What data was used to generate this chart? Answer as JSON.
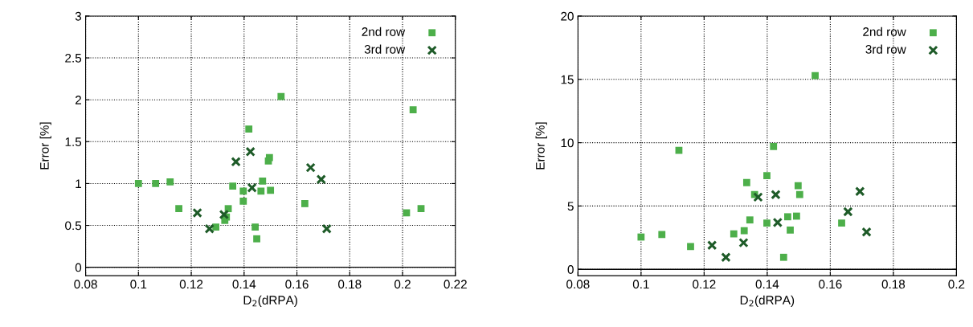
{
  "chart_data": [
    {
      "type": "scatter",
      "xlabel": "D$_{2}$(dRPA)",
      "ylabel": "Error [%]",
      "xlim": [
        0.08,
        0.22
      ],
      "xticks": [
        0.08,
        0.1,
        0.12,
        0.14,
        0.16,
        0.18,
        0.2,
        0.22
      ],
      "ylim": [
        -0.1,
        3
      ],
      "yticks": [
        0,
        0.5,
        1,
        1.5,
        2,
        2.5,
        3
      ],
      "grid": true,
      "legend": "top right",
      "ref_lines": [
        {
          "axis": "y",
          "value": 0,
          "color": "#000000",
          "line_style": "solid"
        }
      ],
      "series": [
        {
          "name": "2nd row",
          "color": "#4daf4a",
          "marker": "square",
          "x": [
            0.1,
            0.1065,
            0.112,
            0.1153,
            0.1293,
            0.134,
            0.1333,
            0.1327,
            0.1357,
            0.1397,
            0.1397,
            0.1418,
            0.147,
            0.1464,
            0.15,
            0.1492,
            0.1496,
            0.1442,
            0.1448,
            0.154,
            0.204,
            0.163,
            0.2015,
            0.207
          ],
          "values": [
            1.0,
            1.0,
            1.02,
            0.7,
            0.48,
            0.7,
            0.6,
            0.56,
            0.97,
            0.91,
            0.79,
            1.65,
            1.03,
            0.91,
            0.92,
            1.27,
            1.31,
            0.48,
            0.34,
            2.04,
            1.88,
            0.76,
            0.65,
            0.7
          ]
        },
        {
          "name": "3rd row",
          "color": "#1e5b28",
          "marker": "cross",
          "x": [
            0.1223,
            0.1269,
            0.1324,
            0.1369,
            0.1424,
            0.143,
            0.1652,
            0.1692,
            0.1713
          ],
          "values": [
            0.65,
            0.46,
            0.63,
            1.26,
            1.38,
            0.95,
            1.19,
            1.05,
            0.46
          ]
        }
      ]
    },
    {
      "type": "scatter",
      "xlabel": "D$_{2}$(dRPA)",
      "ylabel": "Error [%]",
      "xlim": [
        0.08,
        0.2
      ],
      "xticks": [
        0.08,
        0.1,
        0.12,
        0.14,
        0.16,
        0.18,
        0.2
      ],
      "ylim": [
        -0.5,
        20
      ],
      "yticks": [
        0,
        5,
        10,
        15,
        20
      ],
      "grid": true,
      "legend": "top right",
      "ref_lines": [
        {
          "axis": "y",
          "value": 0,
          "color": "#000000",
          "line_style": "solid"
        }
      ],
      "series": [
        {
          "name": "2nd row",
          "color": "#4daf4a",
          "marker": "square",
          "x": [
            0.1,
            0.1066,
            0.112,
            0.1157,
            0.1294,
            0.1327,
            0.1345,
            0.1335,
            0.136,
            0.1399,
            0.142,
            0.1399,
            0.1465,
            0.1493,
            0.1473,
            0.1452,
            0.1498,
            0.1503,
            0.1552,
            0.1636
          ],
          "values": [
            2.55,
            2.75,
            9.4,
            1.8,
            2.8,
            3.05,
            3.9,
            6.85,
            5.9,
            7.4,
            9.7,
            3.65,
            4.15,
            4.2,
            3.1,
            0.95,
            6.6,
            5.9,
            15.3,
            3.65
          ]
        },
        {
          "name": "3rd row",
          "color": "#1e5b28",
          "marker": "cross",
          "x": [
            0.1225,
            0.1269,
            0.1325,
            0.1371,
            0.1427,
            0.1433,
            0.1694,
            0.1656,
            0.1715
          ],
          "values": [
            1.9,
            0.95,
            2.1,
            5.7,
            5.9,
            3.7,
            6.15,
            4.55,
            2.95
          ]
        }
      ]
    }
  ]
}
